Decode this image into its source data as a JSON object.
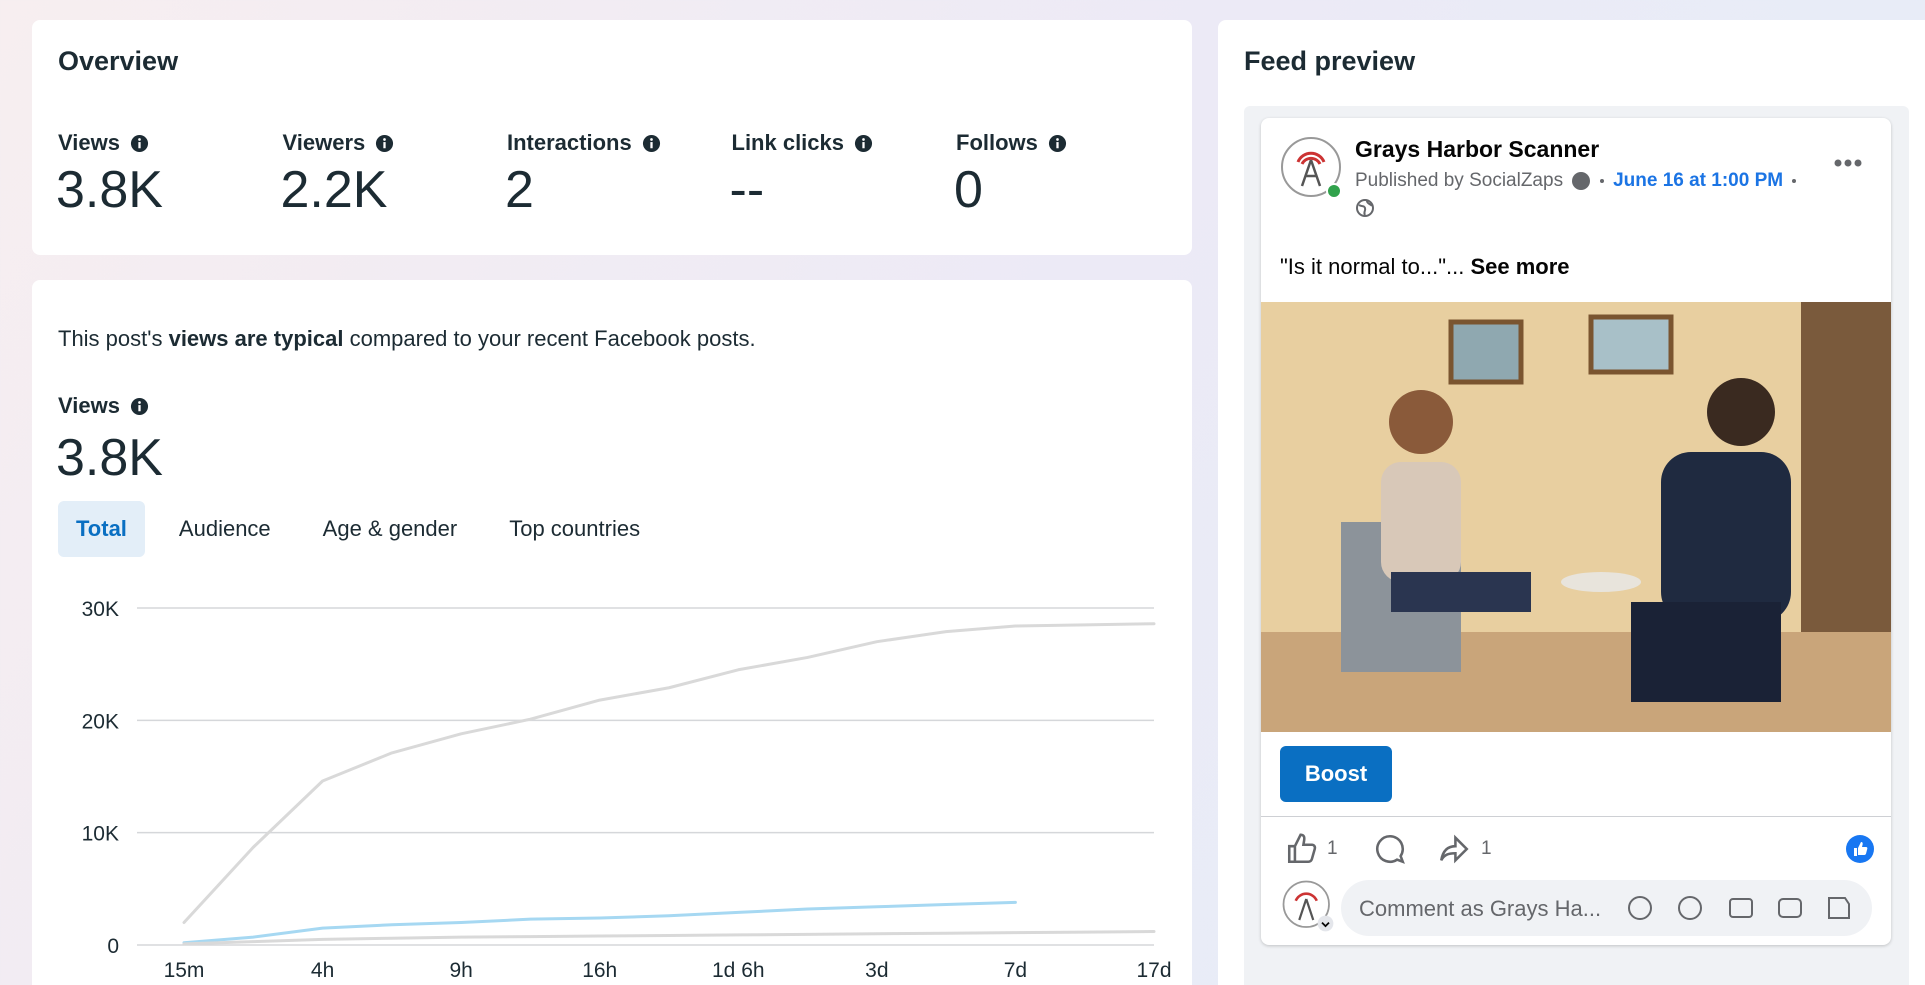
{
  "overview": {
    "title": "Overview",
    "metrics": [
      {
        "label": "Views",
        "value": "3.8K"
      },
      {
        "label": "Viewers",
        "value": "2.2K"
      },
      {
        "label": "Interactions",
        "value": "2"
      },
      {
        "label": "Link clicks",
        "value": "--"
      },
      {
        "label": "Follows",
        "value": "0"
      }
    ]
  },
  "summary": {
    "before": "This post's ",
    "bold": "views are typical",
    "after": " compared to your recent Facebook posts."
  },
  "views": {
    "label": "Views",
    "value": "3.8K"
  },
  "tabs": [
    "Total",
    "Audience",
    "Age & gender",
    "Top countries"
  ],
  "chart_data": {
    "type": "line",
    "categories": [
      "15m",
      null,
      "4h",
      null,
      "9h",
      null,
      "16h",
      null,
      "1d 6h",
      null,
      "3d",
      null,
      "7d",
      null,
      "17d"
    ],
    "series": [
      {
        "color": "#d9d9d9",
        "values": [
          2000,
          8700,
          14600,
          17100,
          18800,
          20100,
          21800,
          22900,
          24500,
          25600,
          27000,
          27900,
          28400,
          28500,
          28600
        ]
      },
      {
        "color": "#a6d8f2",
        "values": [
          200,
          700,
          1500,
          1800,
          2000,
          2300,
          2400,
          2600,
          2900,
          3200,
          3400,
          3600,
          3800,
          null,
          null
        ]
      },
      {
        "color": "#d9d9d9",
        "values": [
          100,
          300,
          500,
          600,
          700,
          750,
          800,
          850,
          900,
          950,
          1000,
          1050,
          1100,
          1150,
          1200
        ]
      }
    ],
    "ylim": [
      0,
      30000
    ],
    "yticks": [
      0,
      {
        "value": 10000,
        "label": "10K"
      },
      {
        "value": 20000,
        "label": "20K"
      },
      {
        "value": 30000,
        "label": "30K"
      }
    ],
    "grid": true
  },
  "feed": {
    "title": "Feed preview",
    "page_name": "Grays Harbor Scanner",
    "published_by": "Published by SocialZaps",
    "date": "June 16 at 1:00 PM",
    "text": "\"Is it normal to...\"...",
    "see_more": "See more",
    "boost": "Boost",
    "like_count": "1",
    "share_count": "1",
    "comment_placeholder": "Comment as Grays Ha..."
  }
}
